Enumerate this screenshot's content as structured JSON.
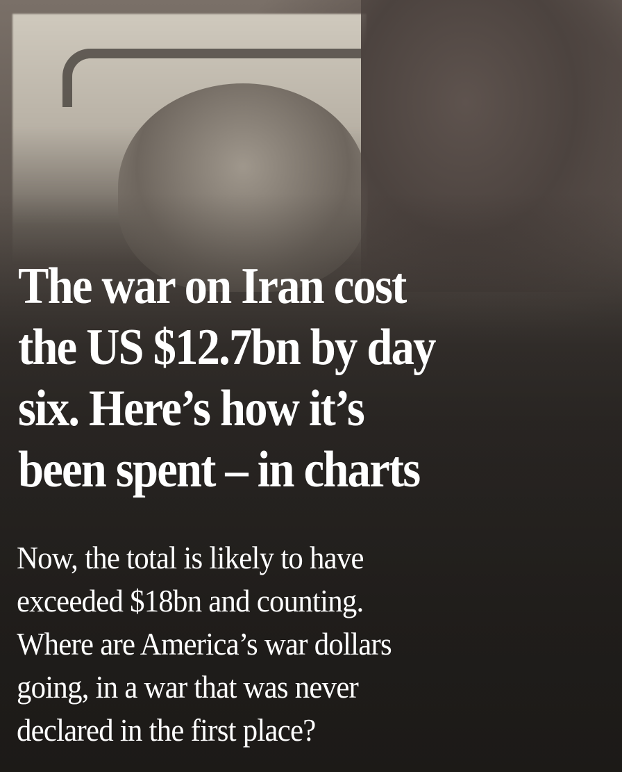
{
  "article": {
    "headline_lines": [
      "The war on Iran cost",
      "the US $12.7bn by day",
      "six. Here’s how it’s",
      "been spent – in charts"
    ],
    "standfirst_lines": [
      "Now, the total is likely to have",
      "exceeded $18bn and counting.",
      "Where are America’s war dollars",
      "going, in a war that was never",
      "declared in the first place?"
    ]
  },
  "colors": {
    "text": "#ffffff",
    "background": "#2e2a27"
  }
}
